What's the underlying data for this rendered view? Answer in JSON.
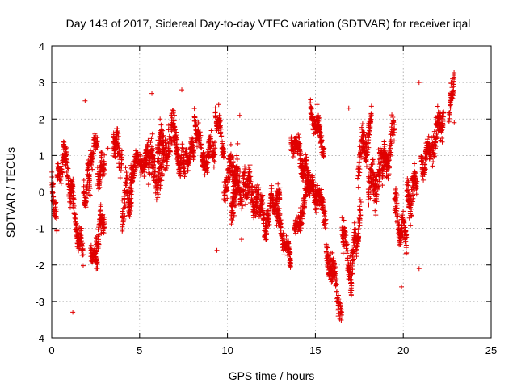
{
  "chart_data": {
    "type": "scatter",
    "title": "Day 143 of 2017, Sidereal Day-to-day VTEC variation (SDTVAR) for receiver iqal",
    "xlabel": "GPS time / hours",
    "ylabel": "SDTVAR / TECUs",
    "xlim": [
      0,
      25
    ],
    "ylim": [
      -4,
      4
    ],
    "xticks": [
      "0",
      "5",
      "10",
      "15",
      "20",
      "25"
    ],
    "yticks": [
      "-4",
      "-3",
      "-2",
      "-1",
      "0",
      "1",
      "2",
      "3",
      "4"
    ],
    "grid": true,
    "marker": "+",
    "color": "#e00000",
    "segments": [
      {
        "x0": 0.0,
        "x1": 0.3,
        "y0": 0.1,
        "y1": -0.9,
        "s": 0.45
      },
      {
        "x0": 0.3,
        "x1": 0.8,
        "y0": 0.3,
        "y1": 1.1,
        "s": 0.4
      },
      {
        "x0": 0.8,
        "x1": 1.3,
        "y0": 0.7,
        "y1": -0.4,
        "s": 0.4
      },
      {
        "x0": 1.3,
        "x1": 1.8,
        "y0": -0.9,
        "y1": -1.6,
        "s": 0.35
      },
      {
        "x0": 1.8,
        "x1": 2.2,
        "y0": -0.3,
        "y1": 0.5,
        "s": 0.5
      },
      {
        "x0": 2.2,
        "x1": 2.6,
        "y0": -1.6,
        "y1": -1.9,
        "s": 0.2
      },
      {
        "x0": 2.2,
        "x1": 2.6,
        "y0": 0.9,
        "y1": 1.5,
        "s": 0.3
      },
      {
        "x0": 2.5,
        "x1": 3.0,
        "y0": -1.4,
        "y1": -0.6,
        "s": 0.4
      },
      {
        "x0": 2.6,
        "x1": 3.0,
        "y0": 0.3,
        "y1": 0.9,
        "s": 0.3
      },
      {
        "x0": 3.5,
        "x1": 4.0,
        "y0": 1.6,
        "y1": 0.8,
        "s": 0.4
      },
      {
        "x0": 4.0,
        "x1": 4.6,
        "y0": -0.4,
        "y1": 0.2,
        "s": 0.6
      },
      {
        "x0": 4.5,
        "x1": 5.5,
        "y0": 0.6,
        "y1": 1.0,
        "s": 0.35
      },
      {
        "x0": 5.5,
        "x1": 6.3,
        "y0": 0.9,
        "y1": 0.2,
        "s": 0.5
      },
      {
        "x0": 6.0,
        "x1": 7.0,
        "y0": 1.0,
        "y1": 1.6,
        "s": 0.55
      },
      {
        "x0": 7.0,
        "x1": 7.6,
        "y0": 1.2,
        "y1": 0.6,
        "s": 0.4
      },
      {
        "x0": 7.6,
        "x1": 8.1,
        "y0": 0.8,
        "y1": 1.2,
        "s": 0.3
      },
      {
        "x0": 8.1,
        "x1": 8.6,
        "y0": 2.0,
        "y1": 1.0,
        "s": 0.3
      },
      {
        "x0": 8.6,
        "x1": 9.3,
        "y0": 0.8,
        "y1": 1.3,
        "s": 0.35
      },
      {
        "x0": 9.3,
        "x1": 9.8,
        "y0": 2.2,
        "y1": 1.2,
        "s": 0.3
      },
      {
        "x0": 9.8,
        "x1": 10.6,
        "y0": 0.3,
        "y1": 0.8,
        "s": 0.5
      },
      {
        "x0": 10.2,
        "x1": 11.0,
        "y0": -0.3,
        "y1": 0.4,
        "s": 0.5
      },
      {
        "x0": 11.0,
        "x1": 11.8,
        "y0": 0.3,
        "y1": -0.4,
        "s": 0.5
      },
      {
        "x0": 11.8,
        "x1": 12.4,
        "y0": -0.4,
        "y1": -1.0,
        "s": 0.4
      },
      {
        "x0": 12.4,
        "x1": 13.0,
        "y0": -0.3,
        "y1": -0.2,
        "s": 0.3
      },
      {
        "x0": 12.8,
        "x1": 13.6,
        "y0": -0.7,
        "y1": -1.9,
        "s": 0.3
      },
      {
        "x0": 13.6,
        "x1": 14.0,
        "y0": 1.2,
        "y1": 1.3,
        "s": 0.25
      },
      {
        "x0": 13.8,
        "x1": 14.8,
        "y0": -1.2,
        "y1": 0.4,
        "s": 0.3
      },
      {
        "x0": 14.0,
        "x1": 14.7,
        "y0": 1.2,
        "y1": 0.2,
        "s": 0.35
      },
      {
        "x0": 14.7,
        "x1": 15.5,
        "y0": 2.3,
        "y1": 1.2,
        "s": 0.3
      },
      {
        "x0": 14.8,
        "x1": 15.6,
        "y0": 0.2,
        "y1": -0.6,
        "s": 0.35
      },
      {
        "x0": 15.6,
        "x1": 16.5,
        "y0": -1.5,
        "y1": -3.2,
        "s": 0.45
      },
      {
        "x0": 16.5,
        "x1": 17.0,
        "y0": -0.8,
        "y1": -2.3,
        "s": 0.4
      },
      {
        "x0": 17.0,
        "x1": 17.6,
        "y0": -2.2,
        "y1": -0.5,
        "s": 0.5
      },
      {
        "x0": 17.4,
        "x1": 18.2,
        "y0": 0.8,
        "y1": 1.8,
        "s": 0.5
      },
      {
        "x0": 18.0,
        "x1": 18.8,
        "y0": 0.0,
        "y1": 0.6,
        "s": 0.6
      },
      {
        "x0": 18.8,
        "x1": 19.5,
        "y0": 0.4,
        "y1": 1.7,
        "s": 0.5
      },
      {
        "x0": 19.5,
        "x1": 20.2,
        "y0": -0.5,
        "y1": -1.4,
        "s": 0.5
      },
      {
        "x0": 20.2,
        "x1": 20.8,
        "y0": -0.3,
        "y1": 0.3,
        "s": 0.5
      },
      {
        "x0": 21.0,
        "x1": 21.6,
        "y0": 0.7,
        "y1": 1.3,
        "s": 0.4
      },
      {
        "x0": 21.6,
        "x1": 22.3,
        "y0": 1.2,
        "y1": 2.2,
        "s": 0.45
      },
      {
        "x0": 22.6,
        "x1": 22.9,
        "y0": 2.2,
        "y1": 3.1,
        "s": 0.25
      }
    ],
    "outliers": [
      {
        "x": 1.2,
        "y": -3.3
      },
      {
        "x": 1.9,
        "y": 2.5
      },
      {
        "x": 3.2,
        "y": 1.2
      },
      {
        "x": 5.7,
        "y": 2.7
      },
      {
        "x": 7.4,
        "y": 2.8
      },
      {
        "x": 9.4,
        "y": -1.6
      },
      {
        "x": 9.5,
        "y": 2.4
      },
      {
        "x": 10.7,
        "y": 2.1
      },
      {
        "x": 10.8,
        "y": -1.3
      },
      {
        "x": 11.3,
        "y": -0.3
      },
      {
        "x": 15.1,
        "y": 2.4
      },
      {
        "x": 16.9,
        "y": 2.3
      },
      {
        "x": 19.9,
        "y": -2.6
      },
      {
        "x": 20.9,
        "y": 3.0
      },
      {
        "x": 20.9,
        "y": -2.1
      },
      {
        "x": 22.8,
        "y": 3.1
      },
      {
        "x": 22.9,
        "y": 1.9
      }
    ]
  }
}
